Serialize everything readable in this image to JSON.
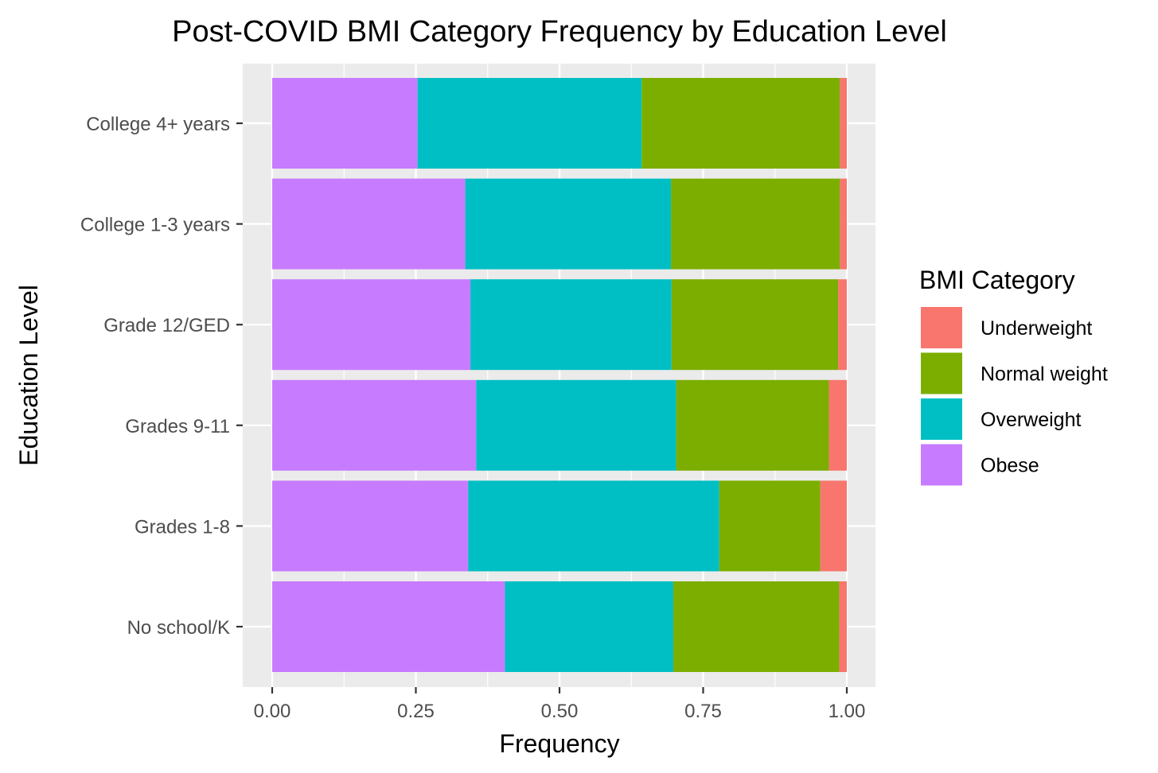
{
  "chart_data": {
    "type": "bar",
    "orientation": "horizontal",
    "stacked": true,
    "title": "Post-COVID BMI Category Frequency by Education Level",
    "xlabel": "Frequency",
    "ylabel": "Education Level",
    "xlim": [
      0,
      1
    ],
    "xticks": [
      "0.00",
      "0.25",
      "0.50",
      "0.75",
      "1.00"
    ],
    "categories": [
      "College 4+ years",
      "College 1-3 years",
      "Grade 12/GED",
      "Grades 9-11",
      "Grades 1-8",
      "No school/K"
    ],
    "series": [
      {
        "name": "Obese",
        "color": "#C77CFF",
        "values": [
          0.253,
          0.336,
          0.345,
          0.355,
          0.341,
          0.405
        ]
      },
      {
        "name": "Overweight",
        "color": "#00BFC4",
        "values": [
          0.39,
          0.358,
          0.35,
          0.348,
          0.437,
          0.293
        ]
      },
      {
        "name": "Normal weight",
        "color": "#7CAE00",
        "values": [
          0.345,
          0.294,
          0.29,
          0.266,
          0.176,
          0.289
        ]
      },
      {
        "name": "Underweight",
        "color": "#F8766D",
        "values": [
          0.012,
          0.012,
          0.015,
          0.031,
          0.046,
          0.013
        ]
      }
    ],
    "legend": {
      "title": "BMI Category",
      "position": "right",
      "order": [
        "Underweight",
        "Normal weight",
        "Overweight",
        "Obese"
      ]
    },
    "grid": true,
    "panel_background": "#EBEBEB",
    "grid_color": "#FFFFFF"
  }
}
